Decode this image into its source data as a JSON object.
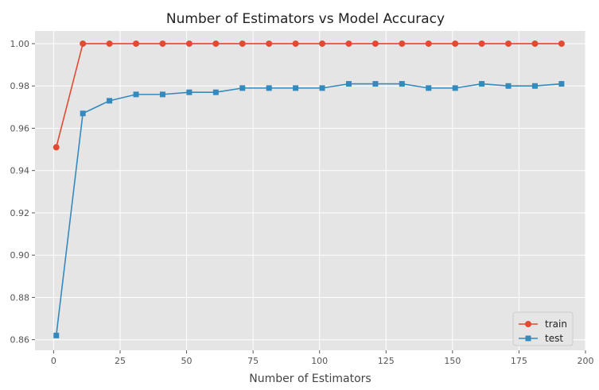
{
  "chart_data": {
    "type": "line",
    "title": "Number of Estimators vs Model Accuracy",
    "xlabel": "Number of Estimators",
    "ylabel": "",
    "xlim": [
      -7,
      200
    ],
    "ylim": [
      0.855,
      1.006
    ],
    "xticks": [
      0,
      25,
      50,
      75,
      100,
      125,
      150,
      175,
      200
    ],
    "yticks": [
      0.86,
      0.88,
      0.9,
      0.92,
      0.94,
      0.96,
      0.98,
      1.0
    ],
    "xtick_labels": [
      "0",
      "25",
      "50",
      "75",
      "100",
      "125",
      "150",
      "175",
      "200"
    ],
    "ytick_labels": [
      "0.86",
      "0.88",
      "0.90",
      "0.92",
      "0.94",
      "0.96",
      "0.98",
      "1.00"
    ],
    "grid": true,
    "legend_position": "lower-right",
    "x": [
      1,
      11,
      21,
      31,
      41,
      51,
      61,
      71,
      81,
      91,
      101,
      111,
      121,
      131,
      141,
      151,
      161,
      171,
      181,
      191
    ],
    "series": [
      {
        "name": "train",
        "color": "#e24a33",
        "marker": "circle",
        "values": [
          0.951,
          1.0,
          1.0,
          1.0,
          1.0,
          1.0,
          1.0,
          1.0,
          1.0,
          1.0,
          1.0,
          1.0,
          1.0,
          1.0,
          1.0,
          1.0,
          1.0,
          1.0,
          1.0,
          1.0
        ]
      },
      {
        "name": "test",
        "color": "#348abd",
        "marker": "square",
        "values": [
          0.862,
          0.967,
          0.973,
          0.976,
          0.976,
          0.977,
          0.977,
          0.979,
          0.979,
          0.979,
          0.979,
          0.981,
          0.981,
          0.981,
          0.979,
          0.979,
          0.981,
          0.98,
          0.98,
          0.981
        ]
      }
    ]
  }
}
